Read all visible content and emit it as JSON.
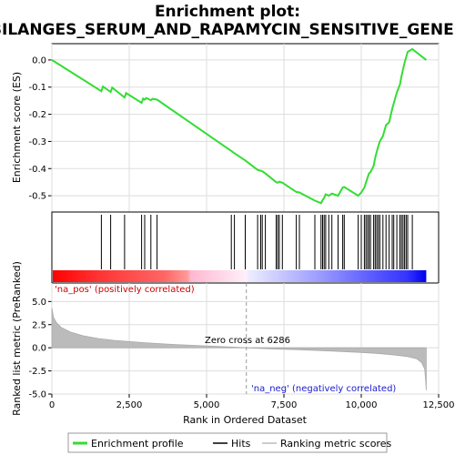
{
  "chart_data": {
    "type": "line",
    "title_line1": "Enrichment plot:",
    "title_line2": "BILANGES_SERUM_AND_RAPAMYCIN_SENSITIVE_GENES",
    "xlabel": "Rank in Ordered Dataset",
    "ylabel_top": "Enrichment score (ES)",
    "ylabel_bottom": "Ranked list metric (PreRanked)",
    "xlim": [
      0,
      12500
    ],
    "x_ticks": [
      0,
      2500,
      5000,
      7500,
      10000,
      12500
    ],
    "x_tick_labels": [
      "0",
      "2,500",
      "5,000",
      "7,500",
      "10,000",
      "12,500"
    ],
    "es_ylim": [
      -0.56,
      0.06
    ],
    "es_ticks": [
      0.0,
      -0.1,
      -0.2,
      -0.3,
      -0.4,
      -0.5
    ],
    "es_tick_labels": [
      "0.0",
      "-0.1",
      "-0.2",
      "-0.3",
      "-0.4",
      "-0.5"
    ],
    "metric_ylim": [
      -5,
      7
    ],
    "metric_ticks": [
      5.0,
      2.5,
      0.0,
      -2.5,
      -5.0
    ],
    "metric_tick_labels": [
      "5.0",
      "2.5",
      "0.0",
      "-2.5",
      "-5.0"
    ],
    "dataset_size": 12100,
    "zero_cross": 6286,
    "zero_cross_label": "Zero cross at 6286",
    "pos_label": "'na_pos' (positively correlated)",
    "neg_label": "'na_neg' (negatively correlated)",
    "legend": [
      "Enrichment profile",
      "Hits",
      "Ranking metric scores"
    ],
    "hits": [
      1600,
      1900,
      2350,
      2900,
      3000,
      3200,
      3400,
      5800,
      5900,
      6250,
      6650,
      6750,
      6800,
      6900,
      7250,
      7300,
      7350,
      7450,
      7900,
      8000,
      8500,
      8700,
      8750,
      8800,
      8850,
      8950,
      9050,
      9250,
      9400,
      9450,
      9900,
      10000,
      10100,
      10150,
      10200,
      10250,
      10300,
      10400,
      10450,
      10500,
      10550,
      10600,
      10700,
      10800,
      10900,
      11000,
      11050,
      11150,
      11250,
      11300,
      11350,
      11400,
      11450,
      11500,
      11650
    ],
    "es_points": [
      [
        0,
        0.0
      ],
      [
        1600,
        -0.115
      ],
      [
        1650,
        -0.098
      ],
      [
        1900,
        -0.118
      ],
      [
        1950,
        -0.102
      ],
      [
        2350,
        -0.138
      ],
      [
        2400,
        -0.122
      ],
      [
        2900,
        -0.158
      ],
      [
        2950,
        -0.142
      ],
      [
        3000,
        -0.146
      ],
      [
        3050,
        -0.14
      ],
      [
        3200,
        -0.148
      ],
      [
        3250,
        -0.143
      ],
      [
        3400,
        -0.146
      ],
      [
        5800,
        -0.335
      ],
      [
        5900,
        -0.343
      ],
      [
        6250,
        -0.37
      ],
      [
        6650,
        -0.405
      ],
      [
        6750,
        -0.408
      ],
      [
        6800,
        -0.41
      ],
      [
        6900,
        -0.418
      ],
      [
        7250,
        -0.45
      ],
      [
        7300,
        -0.452
      ],
      [
        7350,
        -0.448
      ],
      [
        7450,
        -0.452
      ],
      [
        7900,
        -0.486
      ],
      [
        8000,
        -0.488
      ],
      [
        8500,
        -0.518
      ],
      [
        8700,
        -0.527
      ],
      [
        8750,
        -0.516
      ],
      [
        8800,
        -0.508
      ],
      [
        8850,
        -0.495
      ],
      [
        8950,
        -0.5
      ],
      [
        9050,
        -0.492
      ],
      [
        9250,
        -0.5
      ],
      [
        9400,
        -0.47
      ],
      [
        9450,
        -0.468
      ],
      [
        9900,
        -0.5
      ],
      [
        10000,
        -0.488
      ],
      [
        10100,
        -0.47
      ],
      [
        10150,
        -0.452
      ],
      [
        10200,
        -0.435
      ],
      [
        10250,
        -0.418
      ],
      [
        10300,
        -0.413
      ],
      [
        10400,
        -0.39
      ],
      [
        10450,
        -0.36
      ],
      [
        10500,
        -0.338
      ],
      [
        10550,
        -0.318
      ],
      [
        10600,
        -0.3
      ],
      [
        10700,
        -0.28
      ],
      [
        10800,
        -0.24
      ],
      [
        10900,
        -0.23
      ],
      [
        11000,
        -0.18
      ],
      [
        11050,
        -0.16
      ],
      [
        11150,
        -0.12
      ],
      [
        11250,
        -0.09
      ],
      [
        11300,
        -0.06
      ],
      [
        11350,
        -0.035
      ],
      [
        11400,
        -0.01
      ],
      [
        11450,
        0.01
      ],
      [
        11500,
        0.03
      ],
      [
        11650,
        0.04
      ],
      [
        12100,
        0.0
      ]
    ],
    "metric_curve": [
      [
        0,
        4.3
      ],
      [
        50,
        3.3
      ],
      [
        150,
        2.7
      ],
      [
        300,
        2.2
      ],
      [
        600,
        1.7
      ],
      [
        1000,
        1.3
      ],
      [
        1500,
        1.0
      ],
      [
        2000,
        0.8
      ],
      [
        3000,
        0.55
      ],
      [
        4000,
        0.35
      ],
      [
        5000,
        0.2
      ],
      [
        6000,
        0.05
      ],
      [
        6286,
        0.0
      ],
      [
        7000,
        -0.1
      ],
      [
        8000,
        -0.22
      ],
      [
        9000,
        -0.35
      ],
      [
        10000,
        -0.5
      ],
      [
        10500,
        -0.6
      ],
      [
        11000,
        -0.75
      ],
      [
        11500,
        -0.95
      ],
      [
        11800,
        -1.2
      ],
      [
        11950,
        -1.6
      ],
      [
        12050,
        -2.3
      ],
      [
        12080,
        -3.5
      ],
      [
        12100,
        -4.6
      ]
    ]
  }
}
